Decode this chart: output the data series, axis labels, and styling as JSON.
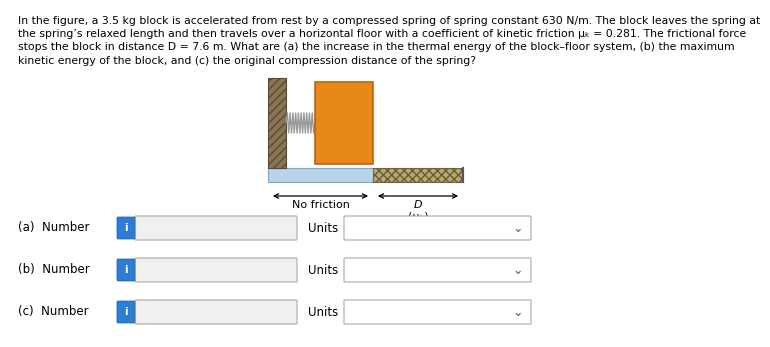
{
  "background_color": "#ffffff",
  "title_text": "In the figure, a 3.5 kg block is accelerated from rest by a compressed spring of spring constant 630 N/m. The block leaves the spring at\nthe spring’s relaxed length and then travels over a horizontal floor with a coefficient of kinetic friction μₖ = 0.281. The frictional force\nstops the block in distance D = 7.6 m. What are (a) the increase in the thermal energy of the block–floor system, (b) the maximum\nkinetic energy of the block, and (c) the original compression distance of the spring?",
  "no_friction_label": "No friction",
  "D_label": "D",
  "mu_label": "(μₖ)",
  "i_color": "#2d7dd2",
  "i_color_dark": "#1a5fa8",
  "row_labels": [
    "(a)  Number",
    "(b)  Number",
    "(c)  Number"
  ],
  "wall_color": "#8b7355",
  "wall_hatch_color": "#5a4a30",
  "spring_color": "#999999",
  "block_color": "#e8871a",
  "block_edge_color": "#c06010",
  "floor_smooth_color": "#b8d4e8",
  "floor_smooth_edge": "#7aaac8",
  "floor_rough_color": "#b8a878",
  "floor_rough_edge": "#8a7a50",
  "input_box_color": "#f0f0f0",
  "input_box_edge": "#aaaaaa",
  "dropdown_color": "#ffffff",
  "dropdown_edge": "#aaaaaa"
}
